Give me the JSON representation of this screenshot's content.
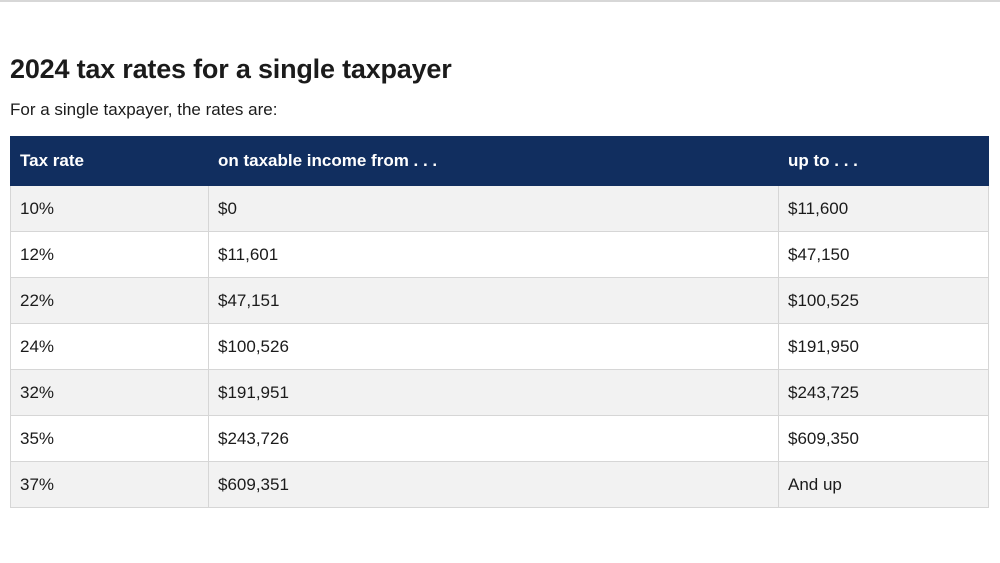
{
  "page": {
    "title": "2024 tax rates for a single taxpayer",
    "intro": "For a single taxpayer, the rates are:"
  },
  "table": {
    "headers": {
      "rate": "Tax rate",
      "from": "on taxable income from . . .",
      "to": "up to . . ."
    },
    "rows": [
      {
        "rate": "10%",
        "from": "$0",
        "to": "$11,600"
      },
      {
        "rate": "12%",
        "from": "$11,601",
        "to": "$47,150"
      },
      {
        "rate": "22%",
        "from": "$47,151",
        "to": "$100,525"
      },
      {
        "rate": "24%",
        "from": "$100,526",
        "to": "$191,950"
      },
      {
        "rate": "32%",
        "from": "$191,951",
        "to": "$243,725"
      },
      {
        "rate": "35%",
        "from": "$243,726",
        "to": "$609,350"
      },
      {
        "rate": "37%",
        "from": "$609,351",
        "to": "And up"
      }
    ]
  },
  "colors": {
    "header_background": "#112e5f",
    "header_text": "#ffffff",
    "stripe_background": "#f2f2f2",
    "border": "#d6d6d6"
  }
}
